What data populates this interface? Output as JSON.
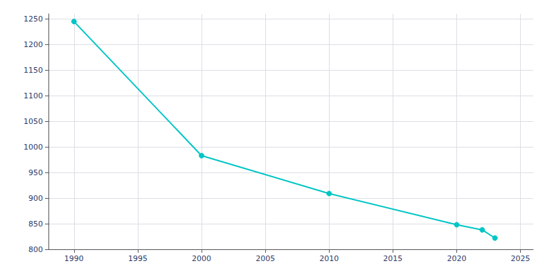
{
  "chart_data": {
    "type": "line",
    "x": [
      1990,
      2000,
      2010,
      2020,
      2022,
      2023
    ],
    "values": [
      1245,
      983,
      909,
      848,
      838,
      822
    ],
    "color": "#00C5C5",
    "marker": "circle",
    "xlim": [
      1988,
      2026
    ],
    "ylim": [
      800,
      1260
    ],
    "xticks": [
      1990,
      1995,
      2000,
      2005,
      2010,
      2015,
      2020,
      2025
    ],
    "yticks": [
      800,
      850,
      900,
      950,
      1000,
      1050,
      1100,
      1150,
      1200,
      1250
    ],
    "grid": true
  }
}
